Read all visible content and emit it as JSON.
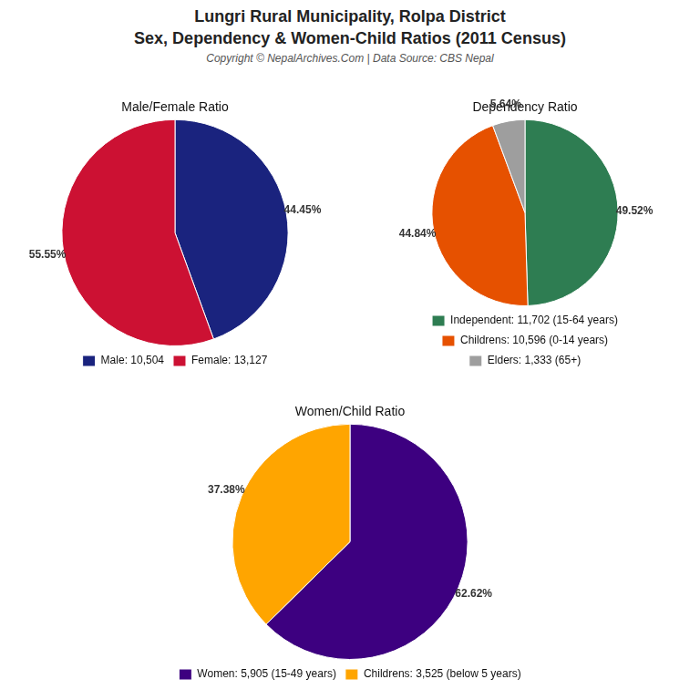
{
  "title": "Lungri Rural Municipality, Rolpa District",
  "subtitle": "Sex, Dependency & Women-Child Ratios (2011 Census)",
  "annotations": [
    "Copyright © NepalArchives.Com | Data Source: CBS Nepal"
  ],
  "chart_data": [
    {
      "type": "pie",
      "title": "Male/Female Ratio",
      "categories": [
        "Male: 10,504",
        "Female: 13,127"
      ],
      "values": [
        44.45,
        55.55
      ],
      "value_labels": [
        "44.45%",
        "55.55%"
      ],
      "colors": [
        "#1a237e",
        "#cc1133"
      ],
      "data_labels": true,
      "legend": "bottom"
    },
    {
      "type": "pie",
      "title": "Dependency Ratio",
      "categories": [
        "Independent: 11,702 (15-64 years)",
        "Childrens: 10,596 (0-14 years)",
        "Elders: 1,333 (65+)"
      ],
      "values": [
        49.52,
        44.84,
        5.64
      ],
      "value_labels": [
        "49.52%",
        "44.84%",
        "5.64%"
      ],
      "colors": [
        "#2e7d52",
        "#e65100",
        "#9e9e9e"
      ],
      "data_labels": true,
      "legend": "bottom"
    },
    {
      "type": "pie",
      "title": "Women/Child Ratio",
      "categories": [
        "Women: 5,905 (15-49 years)",
        "Childrens: 3,525 (below 5 years)"
      ],
      "values": [
        62.62,
        37.38
      ],
      "value_labels": [
        "62.62%",
        "37.38%"
      ],
      "colors": [
        "#3d0080",
        "#ffa500"
      ],
      "data_labels": true,
      "legend": "bottom"
    }
  ]
}
